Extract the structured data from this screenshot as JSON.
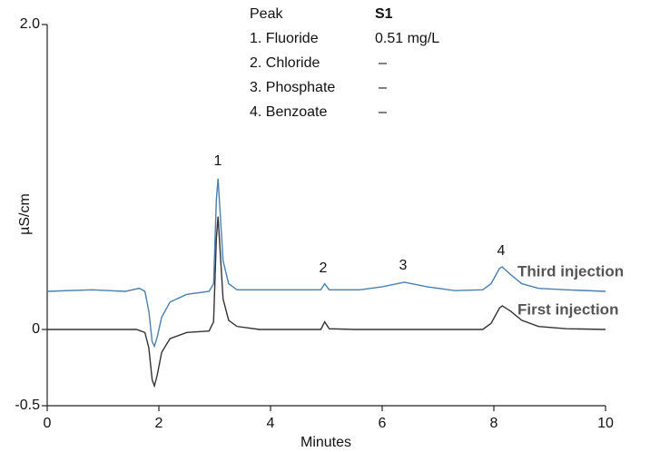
{
  "chart_data": {
    "type": "line",
    "y_label": "µS/cm",
    "x_label": "Minutes",
    "xlim": [
      0,
      10
    ],
    "ylim": [
      -0.5,
      2
    ],
    "xticks": [
      0,
      2,
      4,
      6,
      8,
      10
    ],
    "yticks": [
      -0.5,
      0,
      {
        "value": 2,
        "label": "2.0"
      }
    ],
    "grid": false,
    "peak_labels": [
      "1",
      "2",
      "3",
      "4"
    ],
    "table": {
      "header": [
        "Peak",
        "S1"
      ],
      "rows": [
        [
          "1. Fluoride",
          "0.51 mg/L"
        ],
        [
          "2. Chloride",
          "–"
        ],
        [
          "3. Phosphate",
          "–"
        ],
        [
          "4. Benzoate",
          "–"
        ]
      ]
    },
    "series": [
      {
        "name": "Third injection",
        "color": "#4a7fb0",
        "x": [
          0,
          0.8,
          1.4,
          1.65,
          1.75,
          1.82,
          1.88,
          1.92,
          1.97,
          2.05,
          2.2,
          2.5,
          2.9,
          2.98,
          3.03,
          3.06,
          3.1,
          3.15,
          3.25,
          3.4,
          3.8,
          4.5,
          4.9,
          4.97,
          5.05,
          5.6,
          6.0,
          6.4,
          6.8,
          7.3,
          7.8,
          7.95,
          8.1,
          8.15,
          8.3,
          8.5,
          8.8,
          9.3,
          10
        ],
        "values": [
          0.25,
          0.26,
          0.25,
          0.27,
          0.25,
          0.12,
          -0.08,
          -0.11,
          -0.05,
          0.08,
          0.18,
          0.23,
          0.25,
          0.3,
          0.85,
          0.99,
          0.75,
          0.45,
          0.3,
          0.26,
          0.26,
          0.26,
          0.26,
          0.3,
          0.26,
          0.26,
          0.28,
          0.31,
          0.28,
          0.255,
          0.26,
          0.3,
          0.4,
          0.41,
          0.36,
          0.3,
          0.27,
          0.26,
          0.25
        ]
      },
      {
        "name": "First injection",
        "color": "#333333",
        "x": [
          0,
          1.0,
          1.6,
          1.75,
          1.82,
          1.88,
          1.92,
          1.97,
          2.05,
          2.2,
          2.5,
          2.9,
          2.98,
          3.03,
          3.06,
          3.1,
          3.15,
          3.25,
          3.4,
          3.8,
          4.5,
          4.9,
          4.97,
          5.05,
          5.5,
          6.5,
          7.8,
          7.95,
          8.1,
          8.15,
          8.3,
          8.5,
          8.8,
          9.3,
          10
        ],
        "values": [
          0,
          0,
          0,
          -0.02,
          -0.12,
          -0.33,
          -0.37,
          -0.3,
          -0.15,
          -0.06,
          -0.02,
          -0.01,
          0.05,
          0.6,
          0.74,
          0.5,
          0.2,
          0.06,
          0.02,
          0,
          0,
          0,
          0.05,
          0.005,
          0,
          0,
          0,
          0.04,
          0.14,
          0.155,
          0.12,
          0.06,
          0.02,
          0.005,
          0
        ]
      }
    ]
  }
}
